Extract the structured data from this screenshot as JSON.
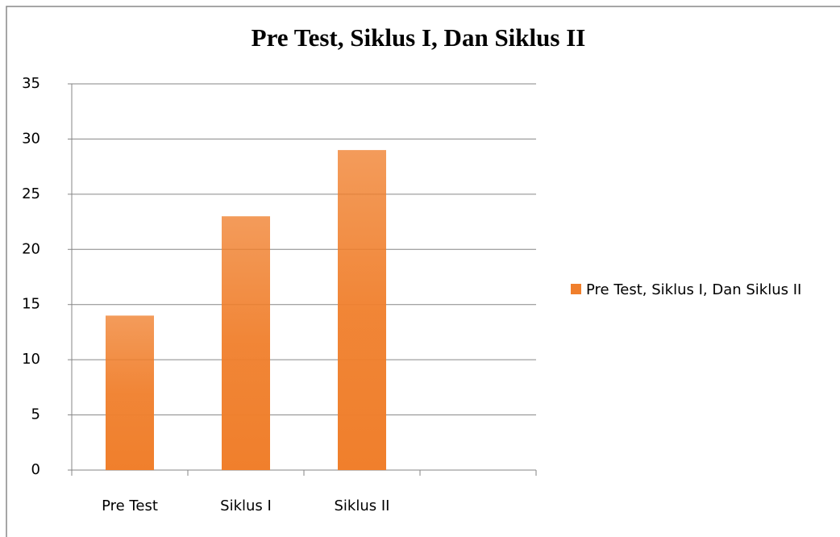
{
  "chart_data": {
    "type": "bar",
    "title": "Pre Test, Siklus I, Dan Siklus II",
    "categories": [
      "Pre Test",
      "Siklus I",
      "Siklus II",
      null
    ],
    "series": [
      {
        "name": "Pre Test, Siklus I, Dan Siklus II",
        "color": "#f07f2c",
        "values": [
          14,
          23,
          29,
          null
        ]
      }
    ],
    "ylim": [
      0,
      35
    ],
    "yticks": [
      0,
      5,
      10,
      15,
      20,
      25,
      30,
      35
    ],
    "grid": true,
    "legend": "right"
  }
}
